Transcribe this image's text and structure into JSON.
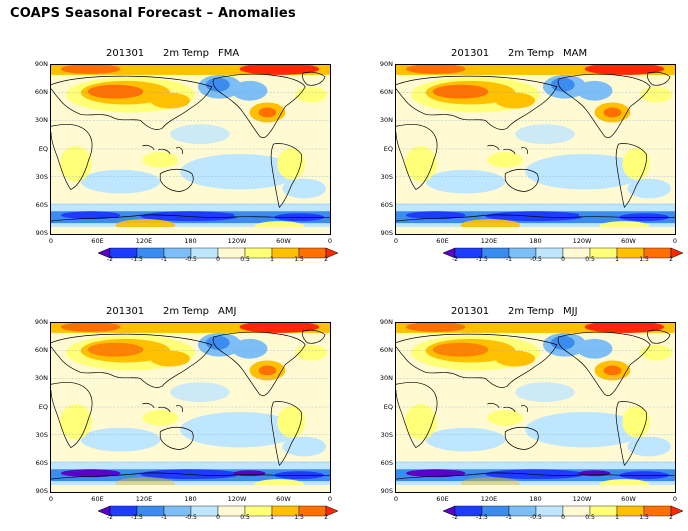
{
  "title": "COAPS Seasonal Forecast – Anomalies",
  "panels": [
    {
      "date": "201301",
      "variable": "2m Temp",
      "season": "FMA"
    },
    {
      "date": "201301",
      "variable": "2m Temp",
      "season": "MAM"
    },
    {
      "date": "201301",
      "variable": "2m Temp",
      "season": "AMJ"
    },
    {
      "date": "201301",
      "variable": "2m Temp",
      "season": "MJJ"
    }
  ],
  "lat_labels": [
    "90N",
    "60N",
    "30N",
    "EQ",
    "30S",
    "60S",
    "90S"
  ],
  "lon_labels": [
    "0",
    "60E",
    "120E",
    "180",
    "120W",
    "60W",
    "0"
  ],
  "colorbar": {
    "labels": [
      "-2",
      "-1.5",
      "-1",
      "-0.5",
      "0",
      "0.5",
      "1",
      "1.5",
      "2"
    ],
    "colors": [
      "#5a00c8",
      "#1e3cff",
      "#3c8cf0",
      "#7cbef5",
      "#bfe6ff",
      "#fffad2",
      "#ffff78",
      "#ffc000",
      "#ff7000",
      "#ff2800"
    ]
  }
}
